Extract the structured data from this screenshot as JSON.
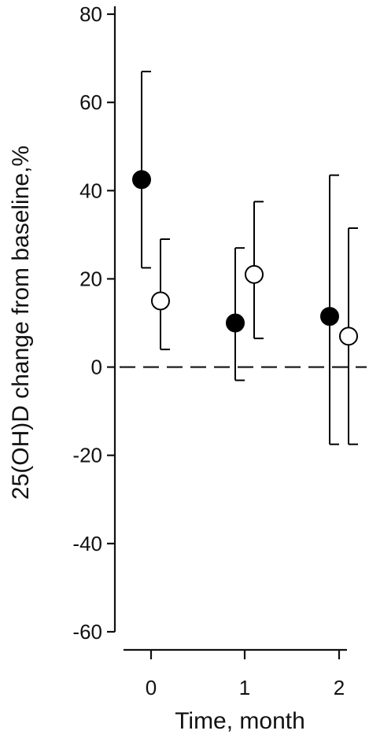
{
  "chart_data": {
    "type": "scatter",
    "title": "",
    "xlabel": "Time, month",
    "ylabel": "25(OH)D change from baseline,%",
    "x_ticks": [
      "0",
      "1",
      "2"
    ],
    "y_ticks": [
      "80",
      "60",
      "40",
      "20",
      "0",
      "-20",
      "-40",
      "-60"
    ],
    "ylim": [
      -60,
      80
    ],
    "reference_line": {
      "y": 0,
      "style": "dashed"
    },
    "legend": "none",
    "grid": false,
    "series": [
      {
        "marker": "filled-circle",
        "color": "#000000",
        "points": [
          {
            "x": 0,
            "y": 42.5,
            "err_low": 22.5,
            "err_high": 67
          },
          {
            "x": 1,
            "y": 10,
            "err_low": -3,
            "err_high": 27
          },
          {
            "x": 2,
            "y": 11.5,
            "err_low": -17.5,
            "err_high": 43.5
          }
        ]
      },
      {
        "marker": "open-circle",
        "color": "#000000",
        "points": [
          {
            "x": 0,
            "y": 15,
            "err_low": 4,
            "err_high": 29
          },
          {
            "x": 1,
            "y": 21,
            "err_low": 6.5,
            "err_high": 37.5
          },
          {
            "x": 2,
            "y": 7,
            "err_low": -17.5,
            "err_high": 31.5
          }
        ]
      }
    ]
  }
}
